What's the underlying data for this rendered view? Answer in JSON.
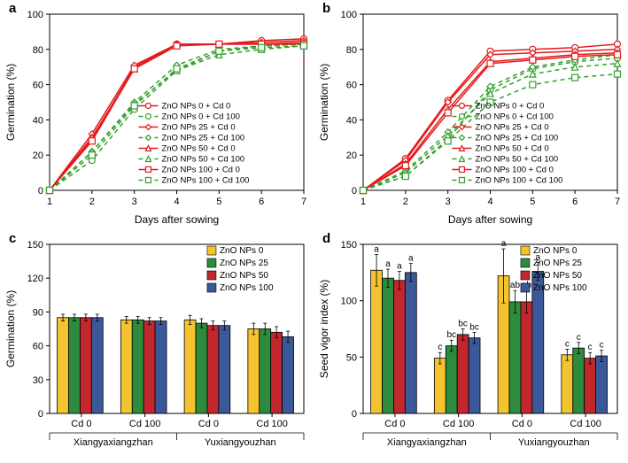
{
  "panels": {
    "a": {
      "label": "a",
      "type": "line",
      "xlabel": "Days after sowing",
      "ylabel": "Germination (%)",
      "xlim": [
        1,
        7
      ],
      "ylim": [
        0,
        100
      ],
      "ytick_step": 20,
      "xticks": [
        1,
        2,
        3,
        4,
        5,
        6,
        7
      ],
      "label_fontsize": 12,
      "tick_fontsize": 11,
      "series": [
        {
          "name": "ZnO NPs 0 + Cd 0",
          "color": "#e41a1c",
          "dash": "none",
          "marker": "circle",
          "values": [
            0,
            29,
            70,
            83,
            83,
            85,
            86
          ]
        },
        {
          "name": "ZnO NPs 0 + Cd 100",
          "color": "#33a02c",
          "dash": "5,4",
          "marker": "circle",
          "values": [
            0,
            17,
            46,
            68,
            79,
            82,
            83
          ]
        },
        {
          "name": "ZnO NPs 25 + Cd 0",
          "color": "#e41a1c",
          "dash": "none",
          "marker": "diamond",
          "values": [
            0,
            32,
            71,
            83,
            83,
            84,
            85
          ]
        },
        {
          "name": "ZnO NPs 25 + Cd 100",
          "color": "#33a02c",
          "dash": "5,4",
          "marker": "diamond",
          "values": [
            0,
            22,
            50,
            71,
            80,
            82,
            83
          ]
        },
        {
          "name": "ZnO NPs 50 + Cd 0",
          "color": "#e41a1c",
          "dash": "none",
          "marker": "triangle",
          "values": [
            0,
            30,
            69,
            83,
            83,
            83,
            84
          ]
        },
        {
          "name": "ZnO NPs 50 + Cd 100",
          "color": "#33a02c",
          "dash": "5,4",
          "marker": "triangle",
          "values": [
            0,
            22,
            49,
            68,
            77,
            80,
            82
          ]
        },
        {
          "name": "ZnO NPs 100 + Cd 0",
          "color": "#e41a1c",
          "dash": "none",
          "marker": "square",
          "values": [
            0,
            28,
            69,
            82,
            83,
            83,
            83
          ]
        },
        {
          "name": "ZnO NPs 100 + Cd 100",
          "color": "#33a02c",
          "dash": "5,4",
          "marker": "square",
          "values": [
            0,
            20,
            48,
            69,
            79,
            81,
            82
          ]
        }
      ],
      "legend_items": [
        "ZnO NPs 0 + Cd 0",
        "ZnO NPs 0 + Cd 100",
        "ZnO NPs 25 + Cd 0",
        "ZnO NPs 25 + Cd 100",
        "ZnO NPs 50 + Cd 0",
        "ZnO NPs 50 + Cd 100",
        "ZnO NPs 100 + Cd 0",
        "ZnO NPs 100 + Cd 100"
      ]
    },
    "b": {
      "label": "b",
      "type": "line",
      "xlabel": "Days after sowing",
      "ylabel": "Germination (%)",
      "xlim": [
        1,
        7
      ],
      "ylim": [
        0,
        100
      ],
      "ytick_step": 20,
      "xticks": [
        1,
        2,
        3,
        4,
        5,
        6,
        7
      ],
      "label_fontsize": 12,
      "tick_fontsize": 11,
      "series": [
        {
          "name": "ZnO NPs 0 + Cd 0",
          "color": "#e41a1c",
          "dash": "none",
          "marker": "circle",
          "values": [
            0,
            18,
            51,
            79,
            80,
            81,
            83
          ]
        },
        {
          "name": "ZnO NPs 0 + Cd 100",
          "color": "#33a02c",
          "dash": "5,4",
          "marker": "circle",
          "values": [
            0,
            8,
            29,
            57,
            69,
            73,
            75
          ]
        },
        {
          "name": "ZnO NPs 25 + Cd 0",
          "color": "#e41a1c",
          "dash": "none",
          "marker": "diamond",
          "values": [
            0,
            17,
            50,
            77,
            78,
            79,
            80
          ]
        },
        {
          "name": "ZnO NPs 25 + Cd 100",
          "color": "#33a02c",
          "dash": "5,4",
          "marker": "diamond",
          "values": [
            0,
            11,
            33,
            59,
            70,
            74,
            77
          ]
        },
        {
          "name": "ZnO NPs 50 + Cd 0",
          "color": "#e41a1c",
          "dash": "none",
          "marker": "triangle",
          "values": [
            0,
            15,
            46,
            73,
            75,
            77,
            78
          ]
        },
        {
          "name": "ZnO NPs 50 + Cd 100",
          "color": "#33a02c",
          "dash": "5,4",
          "marker": "triangle",
          "values": [
            0,
            10,
            31,
            55,
            66,
            70,
            72
          ]
        },
        {
          "name": "ZnO NPs 100 + Cd 0",
          "color": "#e41a1c",
          "dash": "none",
          "marker": "square",
          "values": [
            0,
            14,
            44,
            72,
            74,
            76,
            77
          ]
        },
        {
          "name": "ZnO NPs 100 + Cd 100",
          "color": "#33a02c",
          "dash": "5,4",
          "marker": "square",
          "values": [
            0,
            8,
            28,
            50,
            60,
            64,
            66
          ]
        }
      ],
      "legend_items": [
        "ZnO NPs 0 + Cd 0",
        "ZnO NPs 0 + Cd 100",
        "ZnO NPs 25 + Cd 0",
        "ZnO NPs 25 + Cd 100",
        "ZnO NPs 50 + Cd 0",
        "ZnO NPs 50 + Cd 100",
        "ZnO NPs 100 + Cd 0",
        "ZnO NPs 100 + Cd 100"
      ]
    },
    "c": {
      "label": "c",
      "type": "bar",
      "xlabel_groups": [
        "Cd 0",
        "Cd 100",
        "Cd 0",
        "Cd 100"
      ],
      "xlabel_clusters": [
        "Xiangyaxiangzhan",
        "Yuxiangyouzhan"
      ],
      "ylabel": "Germination (%)",
      "ylim": [
        0,
        150
      ],
      "ytick_step": 30,
      "label_fontsize": 12,
      "tick_fontsize": 11,
      "colors": {
        "ZnO NPs 0": "#f4c430",
        "ZnO NPs 25": "#2e8b3d",
        "ZnO NPs 50": "#c1272d",
        "ZnO NPs 100": "#3b5998"
      },
      "bar_border": "#000000",
      "legend_items": [
        "ZnO NPs 0",
        "ZnO NPs 25",
        "ZnO NPs 50",
        "ZnO NPs 100"
      ],
      "groups": [
        {
          "values": [
            85,
            85,
            85,
            85
          ],
          "err": [
            3,
            3,
            3,
            3
          ]
        },
        {
          "values": [
            83,
            83,
            82,
            82
          ],
          "err": [
            3,
            3,
            3,
            3
          ]
        },
        {
          "values": [
            83,
            80,
            78,
            78
          ],
          "err": [
            4,
            4,
            4,
            4
          ]
        },
        {
          "values": [
            75,
            75,
            72,
            68
          ],
          "err": [
            5,
            5,
            5,
            5
          ]
        }
      ]
    },
    "d": {
      "label": "d",
      "type": "bar",
      "xlabel_groups": [
        "Cd 0",
        "Cd 100",
        "Cd 0",
        "Cd 100"
      ],
      "xlabel_clusters": [
        "Xiangyaxiangzhan",
        "Yuxiangyouzhan"
      ],
      "ylabel": "Seed vigor index (%)",
      "ylim": [
        0,
        150
      ],
      "ytick_step": 50,
      "label_fontsize": 12,
      "tick_fontsize": 11,
      "colors": {
        "ZnO NPs 0": "#f4c430",
        "ZnO NPs 25": "#2e8b3d",
        "ZnO NPs 50": "#c1272d",
        "ZnO NPs 100": "#3b5998"
      },
      "bar_border": "#000000",
      "legend_items": [
        "ZnO NPs 0",
        "ZnO NPs 25",
        "ZnO NPs 50",
        "ZnO NPs 100"
      ],
      "groups": [
        {
          "values": [
            127,
            120,
            118,
            125
          ],
          "err": [
            14,
            8,
            8,
            8
          ],
          "sig": [
            "a",
            "a",
            "a",
            "a"
          ]
        },
        {
          "values": [
            49,
            60,
            70,
            67
          ],
          "err": [
            5,
            5,
            5,
            5
          ],
          "sig": [
            "c",
            "bc",
            "bc",
            "bc"
          ]
        },
        {
          "values": [
            122,
            99,
            99,
            126
          ],
          "err": [
            24,
            10,
            10,
            8
          ],
          "sig": [
            "a",
            "ab",
            "ab",
            "a"
          ]
        },
        {
          "values": [
            52,
            58,
            49,
            51
          ],
          "err": [
            5,
            5,
            5,
            5
          ],
          "sig": [
            "c",
            "c",
            "c",
            "c"
          ]
        }
      ]
    }
  }
}
